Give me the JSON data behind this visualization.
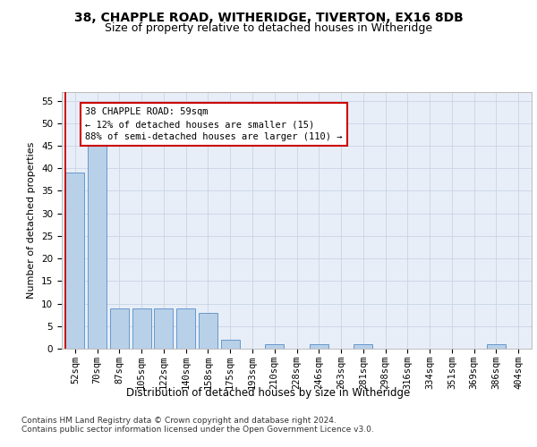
{
  "title1": "38, CHAPPLE ROAD, WITHERIDGE, TIVERTON, EX16 8DB",
  "title2": "Size of property relative to detached houses in Witheridge",
  "xlabel": "Distribution of detached houses by size in Witheridge",
  "ylabel": "Number of detached properties",
  "categories": [
    "52sqm",
    "70sqm",
    "87sqm",
    "105sqm",
    "122sqm",
    "140sqm",
    "158sqm",
    "175sqm",
    "193sqm",
    "210sqm",
    "228sqm",
    "246sqm",
    "263sqm",
    "281sqm",
    "298sqm",
    "316sqm",
    "334sqm",
    "351sqm",
    "369sqm",
    "386sqm",
    "404sqm"
  ],
  "values": [
    39,
    45,
    9,
    9,
    9,
    9,
    8,
    2,
    0,
    1,
    0,
    1,
    0,
    1,
    0,
    0,
    0,
    0,
    0,
    1,
    0
  ],
  "bar_color": "#b8d0e8",
  "bar_edge_color": "#6699cc",
  "annotation_text": "38 CHAPPLE ROAD: 59sqm\n← 12% of detached houses are smaller (15)\n88% of semi-detached houses are larger (110) →",
  "annotation_box_color": "#ffffff",
  "annotation_box_edge_color": "#cc0000",
  "ylim": [
    0,
    57
  ],
  "yticks": [
    0,
    5,
    10,
    15,
    20,
    25,
    30,
    35,
    40,
    45,
    50,
    55
  ],
  "grid_color": "#c8d4e4",
  "background_color": "#e8eef8",
  "footer_text": "Contains HM Land Registry data © Crown copyright and database right 2024.\nContains public sector information licensed under the Open Government Licence v3.0.",
  "title1_fontsize": 10,
  "title2_fontsize": 9,
  "xlabel_fontsize": 8.5,
  "ylabel_fontsize": 8,
  "tick_fontsize": 7.5,
  "annotation_fontsize": 7.5,
  "footer_fontsize": 6.5
}
